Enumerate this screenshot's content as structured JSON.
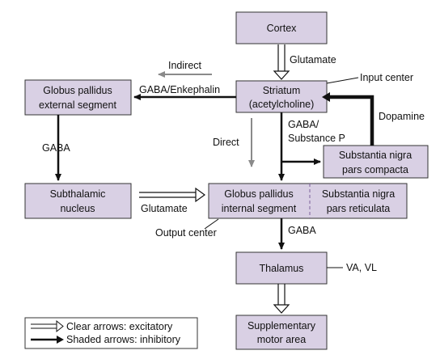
{
  "nodes": {
    "cortex": [
      "Cortex"
    ],
    "striatum": [
      "Striatum",
      "(acetylcholine)"
    ],
    "gpe": [
      "Globus pallidus",
      "external segment"
    ],
    "stn": [
      "Subthalamic",
      "nucleus"
    ],
    "gpi": [
      "Globus pallidus",
      "internal segment"
    ],
    "snr": [
      "Substantia nigra",
      "pars reticulata"
    ],
    "snc": [
      "Substantia nigra",
      "pars compacta"
    ],
    "thalamus": [
      "Thalamus"
    ],
    "sma": [
      "Supplementary",
      "motor area"
    ]
  },
  "labels": {
    "glutamate_cortex": "Glutamate",
    "input_center": "Input center",
    "indirect": "Indirect",
    "gaba_enkephalin": "GABA/Enkephalin",
    "dopamine": "Dopamine",
    "gaba_subp": [
      "GABA/",
      "Substance P"
    ],
    "direct": "Direct",
    "gaba_gpe": "GABA",
    "glutamate_stn": "Glutamate",
    "output_center": "Output center",
    "gaba_gpi": "GABA",
    "va_vl": "VA, VL"
  },
  "legend": {
    "excitatory": "Clear arrows: excitatory",
    "inhibitory": "Shaded arrows: inhibitory"
  },
  "colors": {
    "box_fill": "#d9d0e4",
    "inhibitory": "#111111",
    "indirect_direct": "#8a8a8a"
  }
}
